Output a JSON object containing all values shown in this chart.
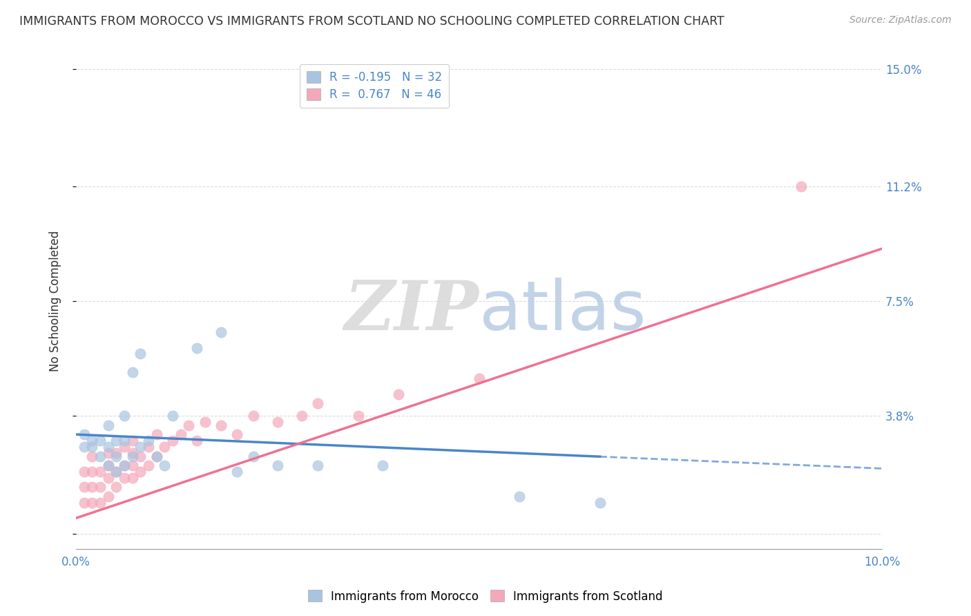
{
  "title": "IMMIGRANTS FROM MOROCCO VS IMMIGRANTS FROM SCOTLAND NO SCHOOLING COMPLETED CORRELATION CHART",
  "source": "Source: ZipAtlas.com",
  "ylabel": "No Schooling Completed",
  "xlim": [
    0.0,
    0.1
  ],
  "ylim": [
    -0.005,
    0.155
  ],
  "yticks": [
    0.0,
    0.038,
    0.075,
    0.112,
    0.15
  ],
  "ytick_labels": [
    "",
    "3.8%",
    "7.5%",
    "11.2%",
    "15.0%"
  ],
  "xticks": [
    0.0,
    0.1
  ],
  "xtick_labels": [
    "0.0%",
    "10.0%"
  ],
  "morocco_color": "#a8c4e0",
  "scotland_color": "#f4a8ba",
  "morocco_line_color": "#4a86c8",
  "scotland_line_color": "#f07090",
  "morocco_R": -0.195,
  "morocco_N": 32,
  "scotland_R": 0.767,
  "scotland_N": 46,
  "background_color": "#ffffff",
  "grid_color": "#cccccc",
  "morocco_scatter_x": [
    0.001,
    0.001,
    0.002,
    0.002,
    0.003,
    0.003,
    0.004,
    0.004,
    0.004,
    0.005,
    0.005,
    0.005,
    0.006,
    0.006,
    0.006,
    0.007,
    0.007,
    0.008,
    0.008,
    0.009,
    0.01,
    0.011,
    0.012,
    0.015,
    0.018,
    0.02,
    0.022,
    0.025,
    0.03,
    0.038,
    0.055,
    0.065
  ],
  "morocco_scatter_y": [
    0.028,
    0.032,
    0.028,
    0.03,
    0.025,
    0.03,
    0.022,
    0.028,
    0.035,
    0.02,
    0.025,
    0.03,
    0.022,
    0.03,
    0.038,
    0.025,
    0.052,
    0.028,
    0.058,
    0.03,
    0.025,
    0.022,
    0.038,
    0.06,
    0.065,
    0.02,
    0.025,
    0.022,
    0.022,
    0.022,
    0.012,
    0.01
  ],
  "scotland_scatter_x": [
    0.001,
    0.001,
    0.001,
    0.002,
    0.002,
    0.002,
    0.002,
    0.003,
    0.003,
    0.003,
    0.004,
    0.004,
    0.004,
    0.004,
    0.005,
    0.005,
    0.005,
    0.006,
    0.006,
    0.006,
    0.007,
    0.007,
    0.007,
    0.007,
    0.008,
    0.008,
    0.009,
    0.009,
    0.01,
    0.01,
    0.011,
    0.012,
    0.013,
    0.014,
    0.015,
    0.016,
    0.018,
    0.02,
    0.022,
    0.025,
    0.028,
    0.03,
    0.035,
    0.04,
    0.05,
    0.09
  ],
  "scotland_scatter_y": [
    0.01,
    0.015,
    0.02,
    0.01,
    0.015,
    0.02,
    0.025,
    0.01,
    0.015,
    0.02,
    0.012,
    0.018,
    0.022,
    0.026,
    0.015,
    0.02,
    0.026,
    0.018,
    0.022,
    0.028,
    0.018,
    0.022,
    0.026,
    0.03,
    0.02,
    0.025,
    0.022,
    0.028,
    0.025,
    0.032,
    0.028,
    0.03,
    0.032,
    0.035,
    0.03,
    0.036,
    0.035,
    0.032,
    0.038,
    0.036,
    0.038,
    0.042,
    0.038,
    0.045,
    0.05,
    0.112
  ],
  "morocco_trend_start_y": 0.032,
  "morocco_trend_end_y": 0.021,
  "scotland_trend_start_y": 0.005,
  "scotland_trend_end_y": 0.092
}
